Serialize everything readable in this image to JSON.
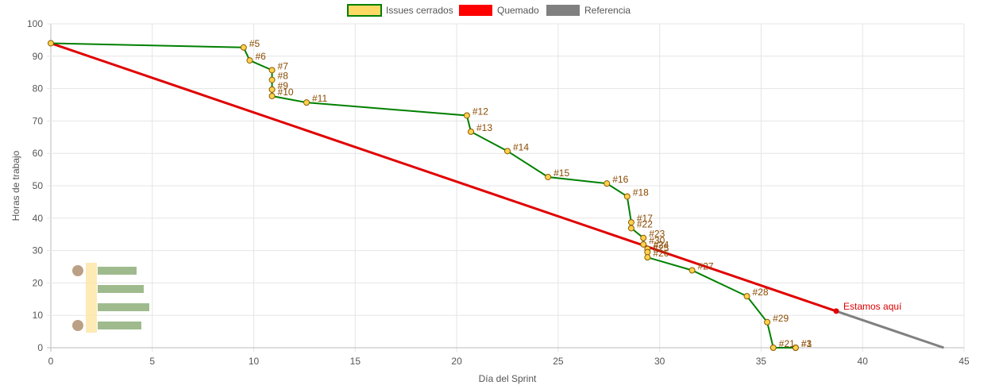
{
  "chart_data": {
    "type": "line",
    "xlabel": "Día del Sprint",
    "ylabel": "Horas de trabajo",
    "xlim": [
      0,
      45
    ],
    "ylim": [
      0,
      100
    ],
    "xticks": [
      0,
      5,
      10,
      15,
      20,
      25,
      30,
      35,
      40,
      45
    ],
    "yticks": [
      0,
      10,
      20,
      30,
      40,
      50,
      60,
      70,
      80,
      90,
      100
    ],
    "grid": true,
    "legend_position": "top-center",
    "series": [
      {
        "name": "Issues cerrados",
        "color": "#008000",
        "marker_fill": "#ffd24d",
        "marker_stroke": "#8a5a00",
        "points": [
          {
            "x": 0,
            "y": 94,
            "label": ""
          },
          {
            "x": 9.5,
            "y": 92.7,
            "label": "#5"
          },
          {
            "x": 9.8,
            "y": 88.7,
            "label": "#6"
          },
          {
            "x": 10.9,
            "y": 85.7,
            "label": "#7"
          },
          {
            "x": 10.9,
            "y": 82.7,
            "label": "#8"
          },
          {
            "x": 10.9,
            "y": 79.7,
            "label": "#9"
          },
          {
            "x": 10.9,
            "y": 77.7,
            "label": "#10"
          },
          {
            "x": 12.6,
            "y": 75.7,
            "label": "#11"
          },
          {
            "x": 20.5,
            "y": 71.7,
            "label": "#12"
          },
          {
            "x": 20.7,
            "y": 66.7,
            "label": "#13"
          },
          {
            "x": 22.5,
            "y": 60.7,
            "label": "#14"
          },
          {
            "x": 24.5,
            "y": 52.7,
            "label": "#15"
          },
          {
            "x": 27.4,
            "y": 50.7,
            "label": "#16"
          },
          {
            "x": 28.4,
            "y": 46.7,
            "label": "#18"
          },
          {
            "x": 28.6,
            "y": 38.7,
            "label": "#17"
          },
          {
            "x": 28.6,
            "y": 36.9,
            "label": "#22"
          },
          {
            "x": 29.2,
            "y": 33.9,
            "label": "#23"
          },
          {
            "x": 29.2,
            "y": 31.9,
            "label": "#30"
          },
          {
            "x": 29.4,
            "y": 30.5,
            "label": "#24"
          },
          {
            "x": 29.4,
            "y": 29.5,
            "label": "#25"
          },
          {
            "x": 29.4,
            "y": 27.9,
            "label": "#26"
          },
          {
            "x": 31.6,
            "y": 23.9,
            "label": "#27"
          },
          {
            "x": 34.3,
            "y": 15.9,
            "label": "#28"
          },
          {
            "x": 35.3,
            "y": 7.9,
            "label": "#29"
          },
          {
            "x": 35.6,
            "y": 0,
            "label": "#21"
          },
          {
            "x": 36.7,
            "y": 0,
            "label": "#3"
          },
          {
            "x": 36.7,
            "y": 0,
            "label": "#1"
          }
        ]
      },
      {
        "name": "Quemado",
        "color": "#e00000",
        "points": [
          {
            "x": 0,
            "y": 94
          },
          {
            "x": 38.7,
            "y": 11.3
          }
        ],
        "annotation": "Estamos aquí"
      },
      {
        "name": "Referencia",
        "color": "#808080",
        "points": [
          {
            "x": 38.7,
            "y": 11.3
          },
          {
            "x": 44,
            "y": 0
          }
        ]
      }
    ]
  }
}
